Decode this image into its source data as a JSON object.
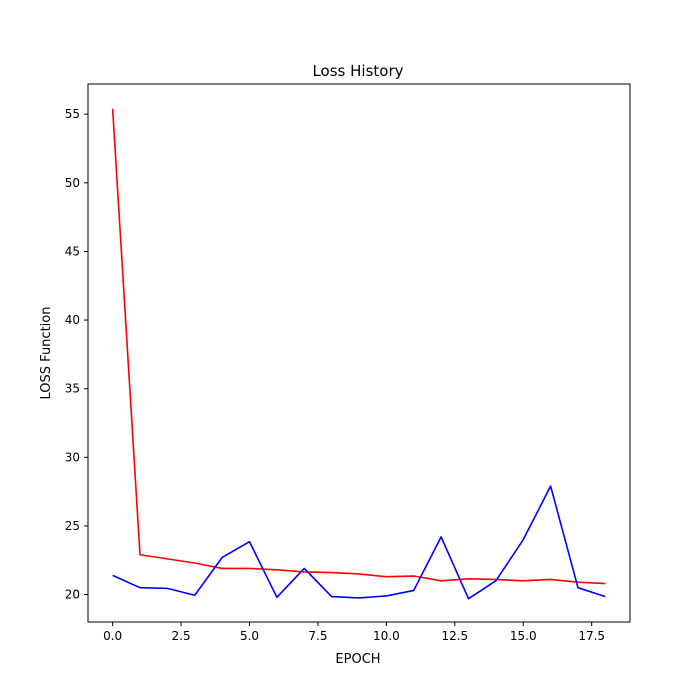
{
  "chart_data": {
    "type": "line",
    "title": "Loss History",
    "xlabel": "EPOCH",
    "ylabel": "LOSS Function",
    "xlim": [
      -0.9,
      18.9
    ],
    "ylim": [
      18.0,
      57.2
    ],
    "xticks": [
      0.0,
      2.5,
      5.0,
      7.5,
      10.0,
      12.5,
      15.0,
      17.5
    ],
    "xtick_labels": [
      "0.0",
      "2.5",
      "5.0",
      "7.5",
      "10.0",
      "12.5",
      "15.0",
      "17.5"
    ],
    "yticks": [
      20,
      25,
      30,
      35,
      40,
      45,
      50,
      55
    ],
    "ytick_labels": [
      "20",
      "25",
      "30",
      "35",
      "40",
      "45",
      "50",
      "55"
    ],
    "grid": false,
    "legend": "none",
    "series": [
      {
        "color": "#ff0000",
        "x": [
          0,
          1,
          2,
          3,
          4,
          5,
          6,
          7,
          8,
          9,
          10,
          11,
          12,
          13,
          14,
          15,
          16,
          17,
          18
        ],
        "y": [
          55.4,
          22.9,
          22.6,
          22.3,
          21.9,
          21.9,
          21.8,
          21.65,
          21.6,
          21.5,
          21.3,
          21.35,
          21.0,
          21.15,
          21.1,
          21.0,
          21.1,
          20.9,
          20.8
        ]
      },
      {
        "color": "#0000ff",
        "x": [
          0,
          1,
          2,
          3,
          4,
          5,
          6,
          7,
          8,
          9,
          10,
          11,
          12,
          13,
          14,
          15,
          16,
          17,
          18
        ],
        "y": [
          21.4,
          20.5,
          20.45,
          19.95,
          22.7,
          23.85,
          19.8,
          21.9,
          19.85,
          19.75,
          19.9,
          20.3,
          24.2,
          19.7,
          21.0,
          24.0,
          27.9,
          20.5,
          19.85
        ]
      }
    ]
  }
}
